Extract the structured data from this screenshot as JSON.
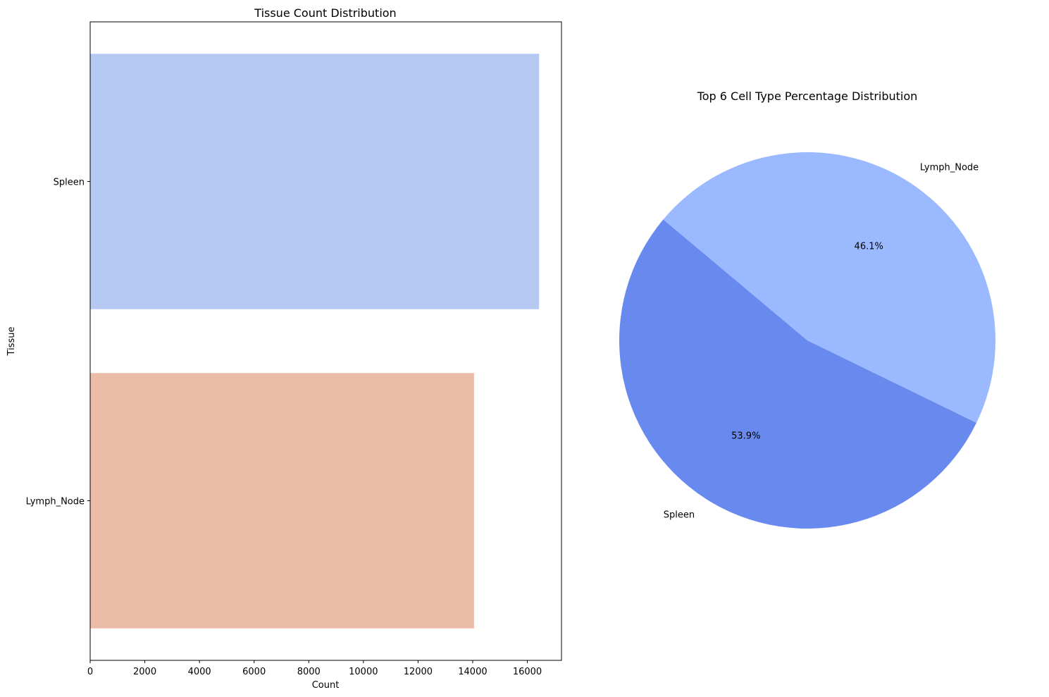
{
  "chart_data": [
    {
      "type": "bar",
      "orientation": "horizontal",
      "title": "Tissue Count Distribution",
      "xlabel": "Count",
      "ylabel": "Tissue",
      "categories": [
        "Spleen",
        "Lymph_Node"
      ],
      "values": [
        16430,
        14050
      ],
      "colors": [
        "#b5c9f2",
        "#ebbda8"
      ],
      "xlim": [
        0,
        17250
      ],
      "xticks": [
        0,
        2000,
        4000,
        6000,
        8000,
        10000,
        12000,
        14000,
        16000
      ],
      "xtick_labels": [
        "0",
        "2000",
        "4000",
        "6000",
        "8000",
        "10000",
        "12000",
        "14000",
        "16000"
      ],
      "grid": false
    },
    {
      "type": "pie",
      "title": "Top 6 Cell Type Percentage Distribution",
      "labels": [
        "Spleen",
        "Lymph_Node"
      ],
      "values": [
        53.9,
        46.1
      ],
      "value_labels": [
        "53.9%",
        "46.1%"
      ],
      "colors": [
        "#6889ee",
        "#9bb9fe"
      ],
      "start_angle_deg": 140,
      "direction": "counterclockwise"
    }
  ]
}
